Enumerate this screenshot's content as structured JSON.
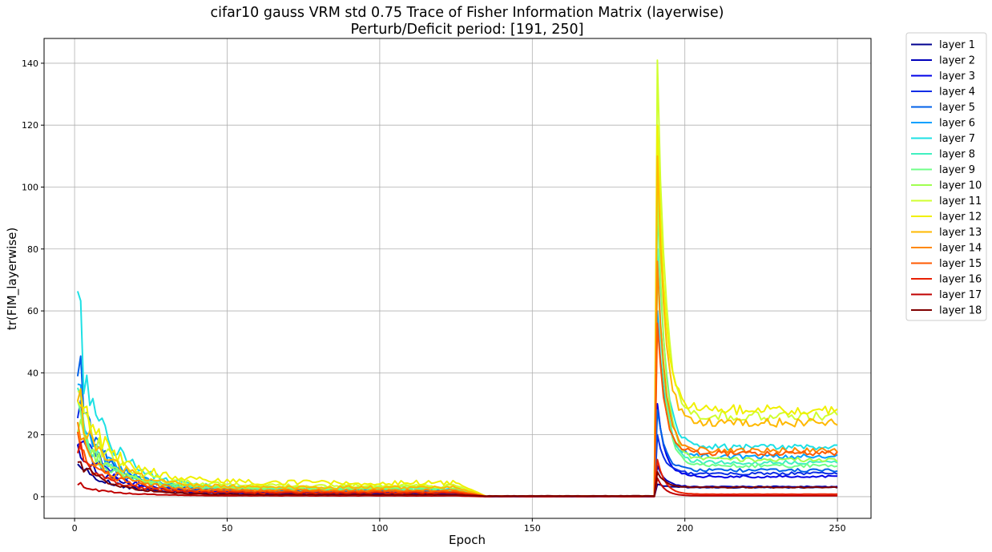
{
  "chart_data": {
    "type": "line",
    "title": "cifar10 gauss VRM std 0.75 Trace of Fisher Information Matrix (layerwise)",
    "subtitle": "Perturb/Deficit period: [191, 250]",
    "xlabel": "Epoch",
    "ylabel": "tr(FIM_layerwise)",
    "xlim": [
      -10,
      261
    ],
    "ylim": [
      -7,
      148
    ],
    "xticks": [
      0,
      50,
      100,
      150,
      200,
      250
    ],
    "yticks": [
      0,
      20,
      40,
      60,
      80,
      100,
      120,
      140
    ],
    "grid": true,
    "legend_position": "outside-right",
    "series": [
      {
        "name": "layer 1",
        "color": "#00008f",
        "start": 10,
        "d1": 8,
        "tail": 1.0,
        "z": 0,
        "peak": 4,
        "post": 3.0,
        "seed": 1
      },
      {
        "name": "layer 2",
        "color": "#0000bb",
        "start": 15,
        "d1": 12,
        "tail": 1.2,
        "z": 0,
        "peak": 10,
        "post": 3.2,
        "seed": 2
      },
      {
        "name": "layer 3",
        "color": "#0000e8",
        "start": 20,
        "d1": 14,
        "tail": 1.5,
        "z": 0.1,
        "peak": 30,
        "post": 6.5,
        "seed": 3
      },
      {
        "name": "layer 4",
        "color": "#0b2de6",
        "start": 28,
        "d1": 18,
        "tail": 1.8,
        "z": 0.1,
        "peak": 20,
        "post": 7.5,
        "seed": 4
      },
      {
        "name": "layer 5",
        "color": "#0060e8",
        "start": 40,
        "d1": 24,
        "tail": 2.0,
        "z": 0.1,
        "peak": 28,
        "post": 8.5,
        "seed": 5
      },
      {
        "name": "layer 6",
        "color": "#00a0ff",
        "start": 35,
        "d1": 21,
        "tail": 2.2,
        "z": 0.1,
        "peak": 60,
        "post": 13,
        "seed": 6
      },
      {
        "name": "layer 7",
        "color": "#1ee0e4",
        "start": 60,
        "d1": 35,
        "tail": 2.6,
        "z": 0.1,
        "peak": 96,
        "post": 16,
        "seed": 7
      },
      {
        "name": "layer 8",
        "color": "#40f0c0",
        "start": 30,
        "d1": 18,
        "tail": 2.4,
        "z": 0.1,
        "peak": 80,
        "post": 11,
        "seed": 8
      },
      {
        "name": "layer 9",
        "color": "#70ff88",
        "start": 28,
        "d1": 16,
        "tail": 2.5,
        "z": 0.1,
        "peak": 75,
        "post": 10,
        "seed": 9
      },
      {
        "name": "layer 10",
        "color": "#a0ff50",
        "start": 25,
        "d1": 15,
        "tail": 3.0,
        "z": 0.1,
        "peak": 100,
        "post": 12,
        "seed": 10
      },
      {
        "name": "layer 11",
        "color": "#d0ff30",
        "start": 38,
        "d1": 22,
        "tail": 3.5,
        "z": 0.1,
        "peak": 141,
        "post": 26,
        "seed": 11
      },
      {
        "name": "layer 12",
        "color": "#f0f000",
        "start": 32,
        "d1": 26,
        "tail": 4.5,
        "z": 0.1,
        "peak": 120,
        "post": 28,
        "seed": 12
      },
      {
        "name": "layer 13",
        "color": "#ffb800",
        "start": 30,
        "d1": 20,
        "tail": 3.0,
        "z": 0.1,
        "peak": 110,
        "post": 24,
        "seed": 13
      },
      {
        "name": "layer 14",
        "color": "#ff8800",
        "start": 22,
        "d1": 14,
        "tail": 2.0,
        "z": 0.1,
        "peak": 76,
        "post": 15,
        "seed": 14
      },
      {
        "name": "layer 15",
        "color": "#ff5a00",
        "start": 18,
        "d1": 12,
        "tail": 1.6,
        "z": 0.1,
        "peak": 56,
        "post": 14,
        "seed": 15
      },
      {
        "name": "layer 16",
        "color": "#e82000",
        "start": 16,
        "d1": 10,
        "tail": 1.2,
        "z": 0.1,
        "peak": 12,
        "post": 0.8,
        "seed": 16
      },
      {
        "name": "layer 17",
        "color": "#c00000",
        "start": 4,
        "d1": 3,
        "tail": 0.3,
        "z": 0,
        "peak": 6,
        "post": 0.3,
        "seed": 17
      },
      {
        "name": "layer 18",
        "color": "#800000",
        "start": 11,
        "d1": 9,
        "tail": 0.6,
        "z": 0.2,
        "peak": 8,
        "post": 3.0,
        "seed": 18
      }
    ]
  }
}
